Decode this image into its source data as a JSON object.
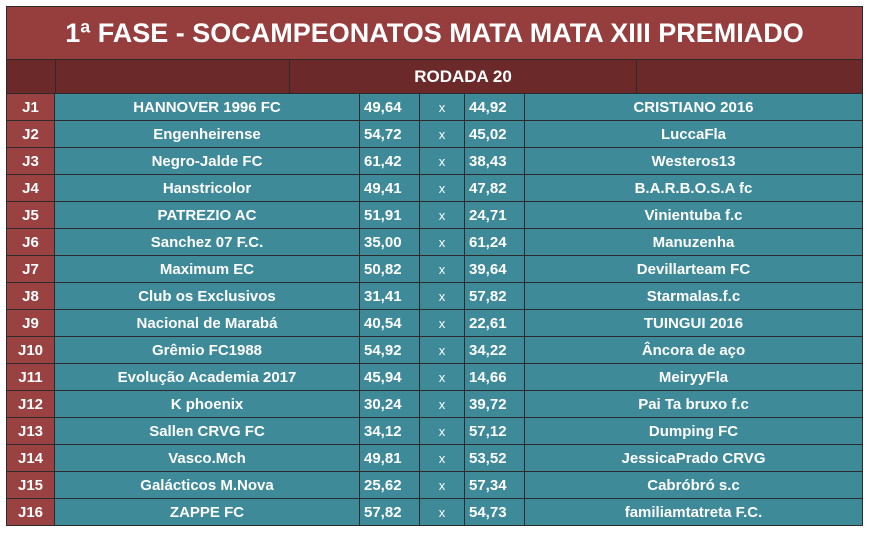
{
  "title": "1ª FASE - SOCAMPEONATOS MATA MATA XIII PREMIADO",
  "round_label": "RODADA 20",
  "separator": "x",
  "matches": [
    {
      "id": "J1",
      "home": "HANNOVER 1996 FC",
      "home_score": "49,64",
      "away_score": "44,92",
      "away": "CRISTIANO 2016"
    },
    {
      "id": "J2",
      "home": "Engenheirense",
      "home_score": "54,72",
      "away_score": "45,02",
      "away": "LuccaFla"
    },
    {
      "id": "J3",
      "home": "Negro-Jalde FC",
      "home_score": "61,42",
      "away_score": "38,43",
      "away": "Westeros13"
    },
    {
      "id": "J4",
      "home": "Hanstricolor",
      "home_score": "49,41",
      "away_score": "47,82",
      "away": "B.A.R.B.O.S.A fc"
    },
    {
      "id": "J5",
      "home": "PATREZIO AC",
      "home_score": "51,91",
      "away_score": "24,71",
      "away": "Vinientuba f.c"
    },
    {
      "id": "J6",
      "home": "Sanchez 07 F.C.",
      "home_score": "35,00",
      "away_score": "61,24",
      "away": "Manuzenha"
    },
    {
      "id": "J7",
      "home": "Maximum EC",
      "home_score": "50,82",
      "away_score": "39,64",
      "away": "Devillarteam FC"
    },
    {
      "id": "J8",
      "home": "Club os Exclusivos",
      "home_score": "31,41",
      "away_score": "57,82",
      "away": "Starmalas.f.c"
    },
    {
      "id": "J9",
      "home": "Nacional de Marabá",
      "home_score": "40,54",
      "away_score": "22,61",
      "away": "TUINGUI 2016"
    },
    {
      "id": "J10",
      "home": "Grêmio FC1988",
      "home_score": "54,92",
      "away_score": "34,22",
      "away": "Âncora de aço"
    },
    {
      "id": "J11",
      "home": "Evolução Academia 2017",
      "home_score": "45,94",
      "away_score": "14,66",
      "away": "MeiryyFla"
    },
    {
      "id": "J12",
      "home": "K phoenix",
      "home_score": "30,24",
      "away_score": "39,72",
      "away": "Pai Ta bruxo f.c"
    },
    {
      "id": "J13",
      "home": "Sallen CRVG FC",
      "home_score": "34,12",
      "away_score": "57,12",
      "away": "Dumping FC"
    },
    {
      "id": "J14",
      "home": "Vasco.Mch",
      "home_score": "49,81",
      "away_score": "53,52",
      "away": "JessicaPrado CRVG"
    },
    {
      "id": "J15",
      "home": "Galácticos M.Nova",
      "home_score": "25,62",
      "away_score": "57,34",
      "away": "Cabróbró s.c"
    },
    {
      "id": "J16",
      "home": "ZAPPE FC",
      "home_score": "57,82",
      "away_score": "54,73",
      "away": "familiamtatreta F.C."
    }
  ]
}
